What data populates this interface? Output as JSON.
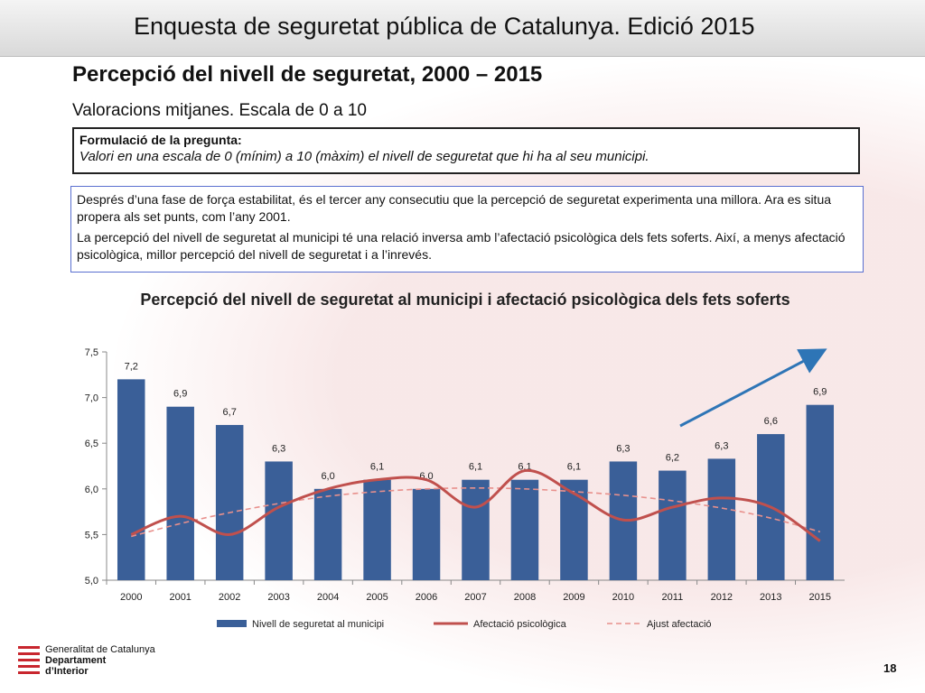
{
  "header": {
    "title": "Enquesta de seguretat pública de Catalunya. Edició 2015"
  },
  "slide": {
    "title": "Percepció del nivell de seguretat, 2000 – 2015",
    "subtitle": "Valoracions mitjanes. Escala de 0 a 10"
  },
  "question": {
    "label": "Formulació de la pregunta:",
    "text": "Valori en una escala de 0 (mínim) a 10 (màxim) el nivell de seguretat que hi ha al seu municipi."
  },
  "info": {
    "p1": "Després d’una fase de força estabilitat, és el tercer any consecutiu que la percepció de seguretat experimenta una millora. Ara es situa propera als set punts, com l’any 2001.",
    "p2": "La percepció del nivell de seguretat al municipi té una relació inversa amb l’afectació psicològica dels fets soferts. Així, a menys afectació psicològica, millor percepció del nivell de seguretat i a l’inrevés."
  },
  "chart_data": {
    "type": "bar",
    "title": "Percepció del nivell de seguretat al municipi i afectació psicològica dels fets soferts",
    "categories": [
      "2000",
      "2001",
      "2002",
      "2003",
      "2004",
      "2005",
      "2006",
      "2007",
      "2008",
      "2009",
      "2010",
      "2011",
      "2012",
      "2013",
      "2015"
    ],
    "ylim": [
      5.0,
      7.5
    ],
    "yticks": [
      "5,0",
      "5,5",
      "6,0",
      "6,5",
      "7,0",
      "7,5"
    ],
    "ytick_values": [
      5.0,
      5.5,
      6.0,
      6.5,
      7.0,
      7.5
    ],
    "series": [
      {
        "name": "Nivell de seguretat al municipi",
        "kind": "bar",
        "color": "#3a5f98",
        "values": [
          7.2,
          6.9,
          6.7,
          6.3,
          6.0,
          6.1,
          6.0,
          6.1,
          6.1,
          6.1,
          6.3,
          6.2,
          6.33,
          6.6,
          6.92
        ],
        "labels": [
          "7,2",
          "6,9",
          "6,7",
          "6,3",
          "6,0",
          "6,1",
          "6,0",
          "6,1",
          "6,1",
          "6,1",
          "6,3",
          "6,2",
          "6,3",
          "6,6",
          "6,9"
        ]
      },
      {
        "name": "Afectació psicològica",
        "kind": "line",
        "color": "#c0504d",
        "values": [
          5.5,
          5.7,
          5.5,
          5.8,
          6.0,
          6.1,
          6.1,
          5.8,
          6.2,
          5.95,
          5.66,
          5.8,
          5.9,
          5.8,
          5.43
        ]
      },
      {
        "name": "Ajust afectació",
        "kind": "trend",
        "color": "#e8908c",
        "values": [
          5.48,
          5.62,
          5.74,
          5.84,
          5.92,
          5.97,
          6.0,
          6.01,
          6.0,
          5.97,
          5.93,
          5.87,
          5.79,
          5.68,
          5.53
        ]
      }
    ],
    "legend": "bottom",
    "grid": false
  },
  "footer": {
    "org_line1": "Generalitat de Catalunya",
    "org_line2": "Departament",
    "org_line3": "d’Interior",
    "page_number": "18"
  },
  "colors": {
    "accent_red": "#c8262e",
    "arrow_blue": "#2e75b6",
    "info_border": "#5a6fd0"
  }
}
